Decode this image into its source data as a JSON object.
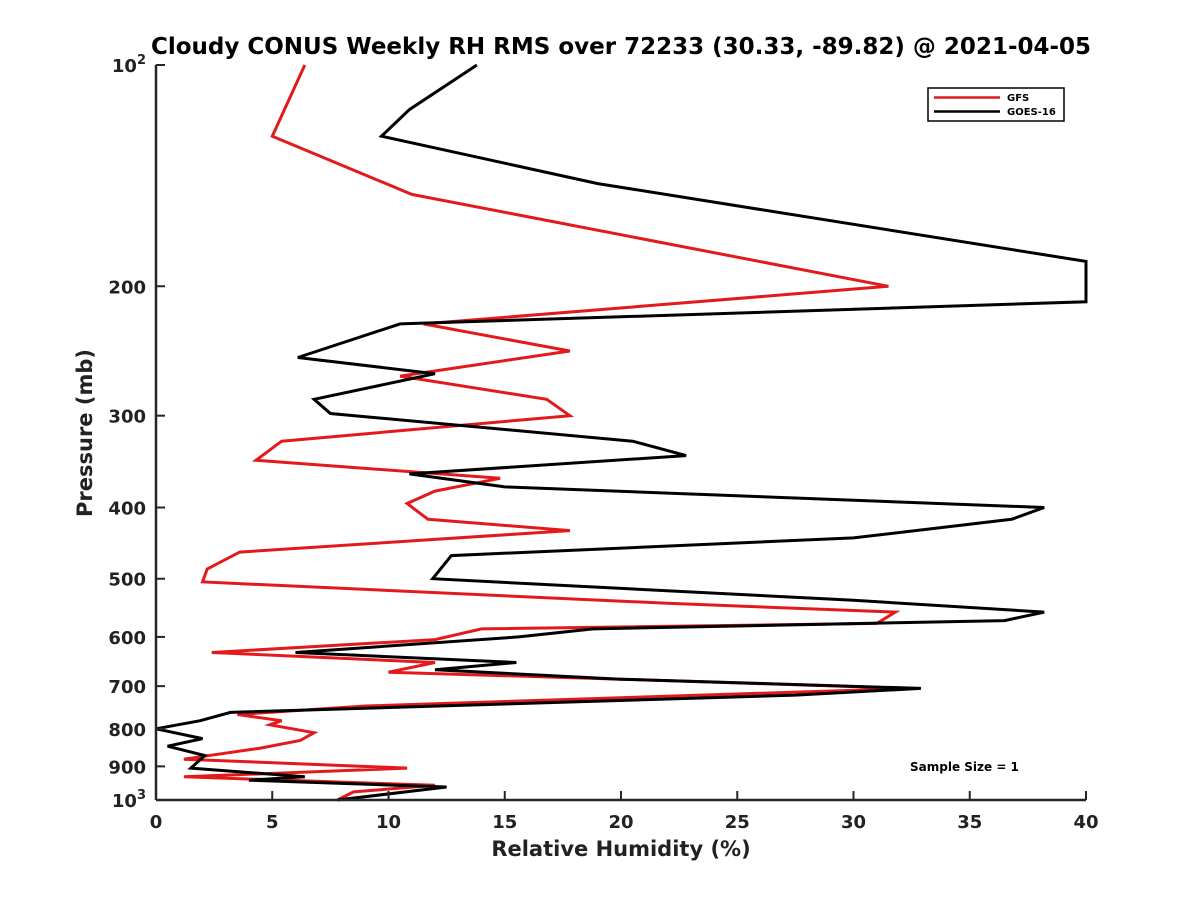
{
  "chart_data": {
    "type": "line",
    "title": "Cloudy CONUS Weekly RH RMS over 72233 (30.33, -89.82) @ 2021-04-05",
    "xlabel": "Relative Humidity (%)",
    "ylabel": "Pressure (mb)",
    "xlim": [
      0,
      40
    ],
    "ylim": [
      100,
      1000
    ],
    "y_scale": "log",
    "y_reversed": true,
    "x_ticks": [
      0,
      5,
      10,
      15,
      20,
      25,
      30,
      35,
      40
    ],
    "x_tick_labels": [
      "0",
      "5",
      "10",
      "15",
      "20",
      "25",
      "30",
      "35",
      "40"
    ],
    "y_ticks": [
      100,
      200,
      300,
      400,
      500,
      600,
      700,
      800,
      900,
      1000
    ],
    "y_tick_labels": [
      {
        "base": "10",
        "exp": "2"
      },
      {
        "base": "200",
        "exp": ""
      },
      {
        "base": "300",
        "exp": ""
      },
      {
        "base": "400",
        "exp": ""
      },
      {
        "base": "500",
        "exp": ""
      },
      {
        "base": "600",
        "exp": ""
      },
      {
        "base": "700",
        "exp": ""
      },
      {
        "base": "800",
        "exp": ""
      },
      {
        "base": "900",
        "exp": ""
      },
      {
        "base": "10",
        "exp": "3"
      }
    ],
    "legend_position": "top-right",
    "annotation": "Sample Size = 1",
    "series": [
      {
        "name": "GFS",
        "color": "#e31a1c",
        "points": [
          [
            6.4,
            100
          ],
          [
            5.0,
            125
          ],
          [
            11.0,
            150
          ],
          [
            31.5,
            200
          ],
          [
            11.5,
            225
          ],
          [
            17.8,
            245
          ],
          [
            10.5,
            265
          ],
          [
            16.8,
            285
          ],
          [
            17.8,
            300
          ],
          [
            5.4,
            325
          ],
          [
            4.3,
            345
          ],
          [
            14.8,
            365
          ],
          [
            12.0,
            380
          ],
          [
            10.8,
            395
          ],
          [
            11.7,
            415
          ],
          [
            17.8,
            430
          ],
          [
            3.6,
            460
          ],
          [
            2.2,
            485
          ],
          [
            2.0,
            505
          ],
          [
            22.0,
            540
          ],
          [
            31.8,
            555
          ],
          [
            31.0,
            575
          ],
          [
            14.0,
            585
          ],
          [
            12.0,
            605
          ],
          [
            2.4,
            630
          ],
          [
            12.0,
            650
          ],
          [
            10.0,
            670
          ],
          [
            20.0,
            685
          ],
          [
            32.5,
            705
          ],
          [
            9.0,
            745
          ],
          [
            3.5,
            765
          ],
          [
            5.4,
            780
          ],
          [
            4.9,
            790
          ],
          [
            6.8,
            810
          ],
          [
            6.2,
            830
          ],
          [
            4.5,
            850
          ],
          [
            1.2,
            880
          ],
          [
            10.8,
            905
          ],
          [
            1.2,
            930
          ],
          [
            12.0,
            955
          ],
          [
            8.5,
            975
          ],
          [
            7.8,
            1000
          ]
        ]
      },
      {
        "name": "GOES-16",
        "color": "#000000",
        "points": [
          [
            13.8,
            100
          ],
          [
            10.9,
            115
          ],
          [
            9.7,
            125
          ],
          [
            19.0,
            145
          ],
          [
            40.0,
            185
          ],
          [
            40.0,
            210
          ],
          [
            10.5,
            225
          ],
          [
            6.1,
            250
          ],
          [
            12.0,
            263
          ],
          [
            6.8,
            285
          ],
          [
            7.5,
            298
          ],
          [
            20.5,
            325
          ],
          [
            22.8,
            340
          ],
          [
            10.9,
            360
          ],
          [
            15.0,
            375
          ],
          [
            38.2,
            400
          ],
          [
            36.8,
            415
          ],
          [
            30.0,
            440
          ],
          [
            12.7,
            465
          ],
          [
            11.9,
            500
          ],
          [
            30.0,
            535
          ],
          [
            38.2,
            555
          ],
          [
            36.5,
            570
          ],
          [
            18.8,
            585
          ],
          [
            15.6,
            600
          ],
          [
            6.0,
            630
          ],
          [
            15.5,
            650
          ],
          [
            12.0,
            665
          ],
          [
            20.0,
            685
          ],
          [
            32.9,
            705
          ],
          [
            27.5,
            720
          ],
          [
            3.2,
            760
          ],
          [
            1.9,
            780
          ],
          [
            0.0,
            800
          ],
          [
            2.0,
            825
          ],
          [
            0.5,
            845
          ],
          [
            2.1,
            870
          ],
          [
            1.5,
            905
          ],
          [
            6.4,
            930
          ],
          [
            4.0,
            940
          ],
          [
            12.5,
            960
          ],
          [
            7.8,
            1000
          ]
        ]
      }
    ]
  }
}
